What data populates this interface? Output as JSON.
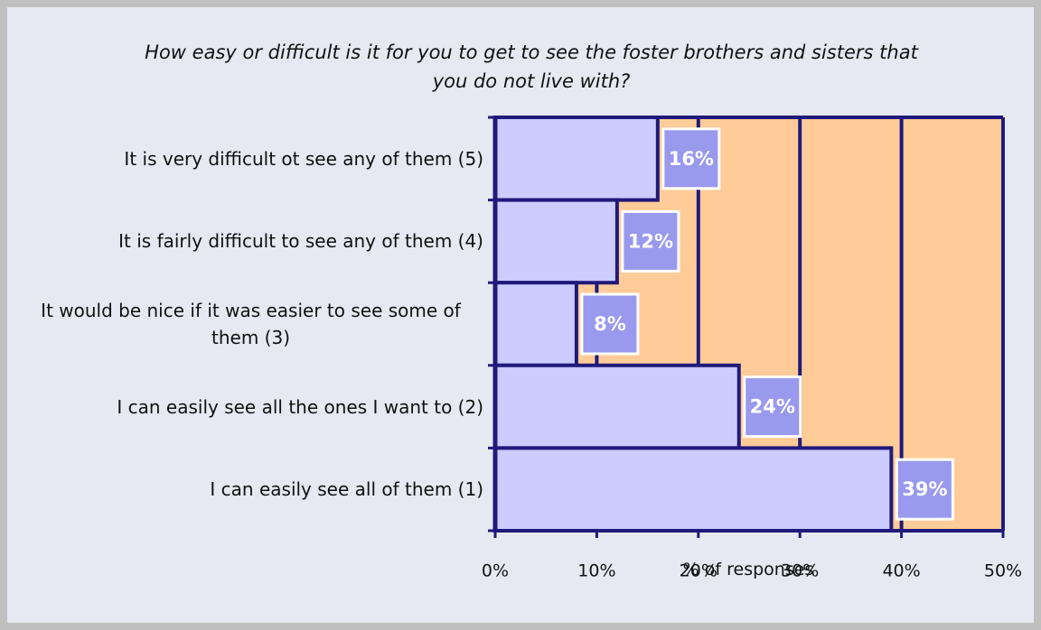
{
  "chart_data": {
    "type": "bar",
    "orientation": "horizontal",
    "title": "How easy or difficult is it for you to get to see the foster brothers and sisters that you do not live with?",
    "xlabel": "% of responses",
    "categories": [
      "It is very difficult ot see any of them (5)",
      "It is fairly difficult to see any of them (4)",
      "It would be nice if it was easier to see some of them (3)",
      "I can easily see all the ones I want to (2)",
      "I can easily see all of them (1)"
    ],
    "values": [
      16,
      12,
      8,
      24,
      39
    ],
    "value_labels": [
      "16%",
      "12%",
      "8%",
      "24%",
      "39%"
    ],
    "color": "#ccccff",
    "xlim": [
      0,
      50
    ],
    "xticks": [
      {
        "value": 0,
        "label": "0%"
      },
      {
        "value": 10,
        "label": "10%"
      },
      {
        "value": 20,
        "label": "20%"
      },
      {
        "value": 30,
        "label": "30%"
      },
      {
        "value": 40,
        "label": "40%"
      },
      {
        "value": 50,
        "label": "50%"
      }
    ],
    "grid": true
  }
}
